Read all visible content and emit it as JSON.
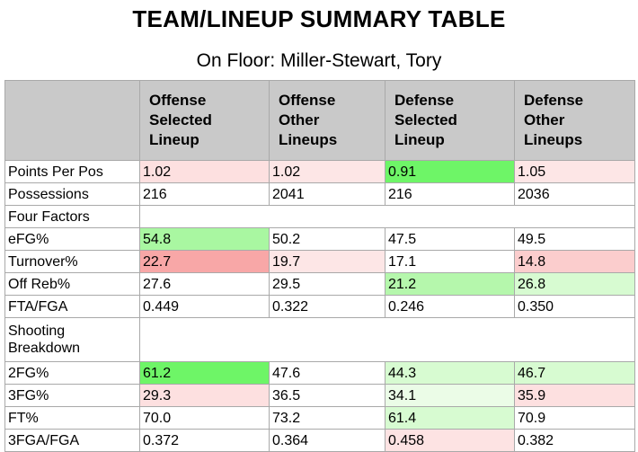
{
  "title": "TEAM/LINEUP SUMMARY TABLE",
  "subtitle": "On Floor: Miller-Stewart, Tory",
  "headers": [
    "",
    "Offense Selected Lineup",
    "Offense Other Lineups",
    "Defense Selected Lineup",
    "Defense Other Lineups"
  ],
  "header_lines": [
    [],
    [
      "Offense",
      "Selected",
      "Lineup"
    ],
    [
      "Offense",
      "Other",
      "Lineups"
    ],
    [
      "Defense",
      "Selected",
      "Lineup"
    ],
    [
      "Defense",
      "Other",
      "Lineups"
    ]
  ],
  "colors": {
    "header_bg": "#c9c9c9",
    "green_strong": "#6ef567",
    "green_mid": "#a9f7a1",
    "green_light": "#d7fbd1",
    "pink_strong": "#f8a7a7",
    "pink_mid": "#fbcdcd",
    "pink_light": "#fde3e3",
    "white": "#ffffff"
  },
  "rows": [
    {
      "type": "data",
      "label": "Points Per Pos",
      "values": [
        "1.02",
        "1.02",
        "0.91",
        "1.05"
      ],
      "colors": [
        "#fde0e0",
        "#fde6e6",
        "#6ef567",
        "#fde6e6"
      ]
    },
    {
      "type": "data",
      "label": "Possessions",
      "values": [
        "216",
        "2041",
        "216",
        "2036"
      ],
      "colors": [
        "#ffffff",
        "#ffffff",
        "#ffffff",
        "#ffffff"
      ]
    },
    {
      "type": "section",
      "label": "Four Factors"
    },
    {
      "type": "data",
      "label": "eFG%",
      "values": [
        "54.8",
        "50.2",
        "47.5",
        "49.5"
      ],
      "colors": [
        "#a9f7a1",
        "#ffffff",
        "#ffffff",
        "#ffffff"
      ]
    },
    {
      "type": "data",
      "label": "Turnover%",
      "values": [
        "22.7",
        "19.7",
        "17.1",
        "14.8"
      ],
      "colors": [
        "#f8a7a7",
        "#fde6e6",
        "#ffffff",
        "#fbcdcd"
      ]
    },
    {
      "type": "data",
      "label": "Off Reb%",
      "values": [
        "27.6",
        "29.5",
        "21.2",
        "26.8"
      ],
      "colors": [
        "#ffffff",
        "#ffffff",
        "#b5f7ac",
        "#d7fbd1"
      ]
    },
    {
      "type": "data",
      "label": "FTA/FGA",
      "values": [
        "0.449",
        "0.322",
        "0.246",
        "0.350"
      ],
      "colors": [
        "#ffffff",
        "#ffffff",
        "#ffffff",
        "#ffffff"
      ]
    },
    {
      "type": "section",
      "label": "Shooting Breakdown",
      "tall": true
    },
    {
      "type": "data",
      "label": "2FG%",
      "values": [
        "61.2",
        "47.6",
        "44.3",
        "46.7"
      ],
      "colors": [
        "#6ef567",
        "#ffffff",
        "#d7fbd1",
        "#d7fbd1"
      ]
    },
    {
      "type": "data",
      "label": "3FG%",
      "values": [
        "29.3",
        "36.5",
        "34.1",
        "35.9"
      ],
      "colors": [
        "#fde0e0",
        "#ffffff",
        "#ebfce7",
        "#fde0e0"
      ]
    },
    {
      "type": "data",
      "label": "FT%",
      "values": [
        "70.0",
        "73.2",
        "61.4",
        "70.9"
      ],
      "colors": [
        "#ffffff",
        "#ffffff",
        "#d7fbd1",
        "#ffffff"
      ]
    },
    {
      "type": "data",
      "label": "3FGA/FGA",
      "values": [
        "0.372",
        "0.364",
        "0.458",
        "0.382"
      ],
      "colors": [
        "#ffffff",
        "#ffffff",
        "#fde3e3",
        "#ffffff"
      ]
    }
  ]
}
